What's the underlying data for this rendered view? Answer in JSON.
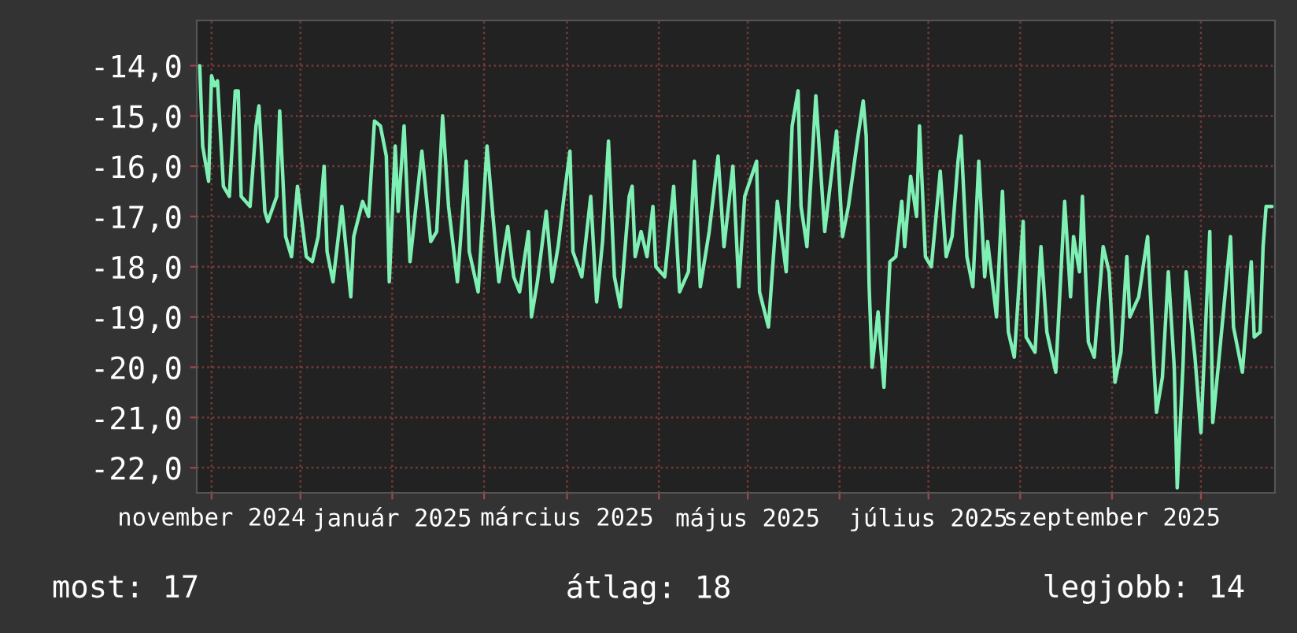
{
  "chart_data": {
    "type": "line",
    "x": [
      "2024-10-28",
      "2024-10-29",
      "2024-10-31",
      "2024-11-01",
      "2024-11-02",
      "2024-11-03",
      "2024-11-05",
      "2024-11-07",
      "2024-11-09",
      "2024-11-10",
      "2024-11-11",
      "2024-11-14",
      "2024-11-16",
      "2024-11-17",
      "2024-11-19",
      "2024-11-20",
      "2024-11-23",
      "2024-11-24",
      "2024-11-26",
      "2024-11-28",
      "2024-11-30",
      "2024-12-03",
      "2024-12-05",
      "2024-12-07",
      "2024-12-09",
      "2024-12-10",
      "2024-12-12",
      "2024-12-15",
      "2024-12-18",
      "2024-12-19",
      "2024-12-22",
      "2024-12-24",
      "2024-12-26",
      "2024-12-28",
      "2024-12-30",
      "2024-12-31",
      "2025-01-02",
      "2025-01-03",
      "2025-01-05",
      "2025-01-07",
      "2025-01-11",
      "2025-01-14",
      "2025-01-16",
      "2025-01-18",
      "2025-01-20",
      "2025-01-23",
      "2025-01-26",
      "2025-01-27",
      "2025-01-30",
      "2025-02-02",
      "2025-02-04",
      "2025-02-06",
      "2025-02-09",
      "2025-02-11",
      "2025-02-13",
      "2025-02-16",
      "2025-02-17",
      "2025-02-19",
      "2025-02-22",
      "2025-02-24",
      "2025-02-26",
      "2025-02-28",
      "2025-03-02",
      "2025-03-03",
      "2025-03-06",
      "2025-03-09",
      "2025-03-11",
      "2025-03-13",
      "2025-03-15",
      "2025-03-17",
      "2025-03-19",
      "2025-03-22",
      "2025-03-23",
      "2025-03-24",
      "2025-03-26",
      "2025-03-28",
      "2025-03-30",
      "2025-03-31",
      "2025-04-03",
      "2025-04-06",
      "2025-04-08",
      "2025-04-11",
      "2025-04-13",
      "2025-04-15",
      "2025-04-18",
      "2025-04-21",
      "2025-04-23",
      "2025-04-26",
      "2025-04-28",
      "2025-04-30",
      "2025-05-04",
      "2025-05-05",
      "2025-05-08",
      "2025-05-11",
      "2025-05-14",
      "2025-05-16",
      "2025-05-18",
      "2025-05-19",
      "2025-05-21",
      "2025-05-24",
      "2025-05-27",
      "2025-05-31",
      "2025-06-02",
      "2025-06-04",
      "2025-06-07",
      "2025-06-09",
      "2025-06-10",
      "2025-06-11",
      "2025-06-12",
      "2025-06-14",
      "2025-06-16",
      "2025-06-18",
      "2025-06-20",
      "2025-06-22",
      "2025-06-23",
      "2025-06-25",
      "2025-06-27",
      "2025-06-28",
      "2025-06-30",
      "2025-07-02",
      "2025-07-05",
      "2025-07-07",
      "2025-07-09",
      "2025-07-11",
      "2025-07-12",
      "2025-07-14",
      "2025-07-16",
      "2025-07-18",
      "2025-07-20",
      "2025-07-21",
      "2025-07-24",
      "2025-07-26",
      "2025-07-28",
      "2025-07-30",
      "2025-08-02",
      "2025-08-03",
      "2025-08-06",
      "2025-08-08",
      "2025-08-10",
      "2025-08-13",
      "2025-08-16",
      "2025-08-18",
      "2025-08-19",
      "2025-08-21",
      "2025-08-22",
      "2025-08-24",
      "2025-08-26",
      "2025-08-29",
      "2025-08-31",
      "2025-09-02",
      "2025-09-04",
      "2025-09-06",
      "2025-09-07",
      "2025-09-10",
      "2025-09-13",
      "2025-09-15",
      "2025-09-16",
      "2025-09-18",
      "2025-09-20",
      "2025-09-22",
      "2025-09-23",
      "2025-09-25",
      "2025-09-26",
      "2025-09-29",
      "2025-10-01",
      "2025-10-04",
      "2025-10-05",
      "2025-10-07",
      "2025-10-11",
      "2025-10-12",
      "2025-10-15",
      "2025-10-18",
      "2025-10-19",
      "2025-10-21",
      "2025-10-22",
      "2025-10-23",
      "2025-10-25"
    ],
    "values": [
      -14.0,
      -15.6,
      -16.3,
      -14.2,
      -14.4,
      -14.3,
      -16.4,
      -16.6,
      -14.5,
      -14.5,
      -16.6,
      -16.8,
      -15.2,
      -14.8,
      -16.9,
      -17.1,
      -16.6,
      -14.9,
      -17.4,
      -17.8,
      -16.4,
      -17.8,
      -17.9,
      -17.4,
      -16.0,
      -17.7,
      -18.3,
      -16.8,
      -18.6,
      -17.4,
      -16.7,
      -17.0,
      -15.1,
      -15.2,
      -15.8,
      -18.3,
      -15.6,
      -16.9,
      -15.2,
      -17.9,
      -15.7,
      -17.5,
      -17.3,
      -15.0,
      -16.8,
      -18.3,
      -15.9,
      -17.7,
      -18.5,
      -15.6,
      -17.0,
      -18.3,
      -17.2,
      -18.2,
      -18.5,
      -17.3,
      -19.0,
      -18.3,
      -16.9,
      -18.3,
      -17.6,
      -16.6,
      -15.7,
      -17.7,
      -18.2,
      -16.6,
      -18.7,
      -17.5,
      -15.5,
      -18.2,
      -18.8,
      -16.6,
      -16.4,
      -17.8,
      -17.3,
      -17.8,
      -16.8,
      -18.0,
      -18.2,
      -16.4,
      -18.5,
      -18.1,
      -15.9,
      -18.4,
      -17.3,
      -15.8,
      -17.6,
      -16.0,
      -18.4,
      -16.6,
      -15.9,
      -18.5,
      -19.2,
      -16.7,
      -18.1,
      -15.2,
      -14.5,
      -16.8,
      -17.6,
      -14.6,
      -17.3,
      -15.3,
      -17.4,
      -16.8,
      -15.5,
      -14.7,
      -15.4,
      -18.4,
      -20.0,
      -18.9,
      -20.4,
      -17.9,
      -17.8,
      -16.7,
      -17.6,
      -16.2,
      -17.0,
      -15.2,
      -17.8,
      -18.0,
      -16.1,
      -17.8,
      -17.4,
      -15.9,
      -15.4,
      -17.8,
      -18.4,
      -15.9,
      -18.2,
      -17.5,
      -19.0,
      -16.5,
      -19.3,
      -19.8,
      -17.1,
      -19.4,
      -19.7,
      -17.6,
      -19.3,
      -20.1,
      -16.7,
      -18.6,
      -17.4,
      -18.1,
      -16.6,
      -19.5,
      -19.8,
      -17.6,
      -18.1,
      -20.3,
      -19.7,
      -17.8,
      -19.0,
      -18.6,
      -17.4,
      -19.8,
      -20.9,
      -20.2,
      -18.1,
      -20.0,
      -22.4,
      -19.9,
      -18.1,
      -19.8,
      -21.3,
      -17.3,
      -21.1,
      -19.9,
      -17.4,
      -19.2,
      -20.1,
      -17.9,
      -19.4,
      -19.3,
      -17.6,
      -16.8,
      -16.8
    ],
    "color": "#7ff0b4",
    "xlim": [
      "2024-10-27",
      "2025-10-26"
    ],
    "xticks": [
      {
        "value": "2024-11-01",
        "label": "november 2024"
      },
      {
        "value": "2024-12-01",
        "label": null
      },
      {
        "value": "2025-01-01",
        "label": "január 2025"
      },
      {
        "value": "2025-02-01",
        "label": null
      },
      {
        "value": "2025-03-01",
        "label": "március 2025"
      },
      {
        "value": "2025-04-01",
        "label": null
      },
      {
        "value": "2025-05-01",
        "label": "május 2025"
      },
      {
        "value": "2025-06-01",
        "label": null
      },
      {
        "value": "2025-07-01",
        "label": "július 2025"
      },
      {
        "value": "2025-08-01",
        "label": null
      },
      {
        "value": "2025-09-01",
        "label": "szeptember 2025"
      },
      {
        "value": "2025-10-01",
        "label": null
      }
    ],
    "ylim": [
      -22.5,
      -13.1
    ],
    "yticks": [
      {
        "value": -14,
        "label": "-14,0"
      },
      {
        "value": -15,
        "label": "-15,0"
      },
      {
        "value": -16,
        "label": "-16,0"
      },
      {
        "value": -17,
        "label": "-17,0"
      },
      {
        "value": -18,
        "label": "-18,0"
      },
      {
        "value": -19,
        "label": "-19,0"
      },
      {
        "value": -20,
        "label": "-20,0"
      },
      {
        "value": -21,
        "label": "-21,0"
      },
      {
        "value": -22,
        "label": "-22,0"
      }
    ],
    "grid": true,
    "annotations": [
      "most: 17",
      "átlag: 18",
      "legjobb: 14"
    ]
  }
}
